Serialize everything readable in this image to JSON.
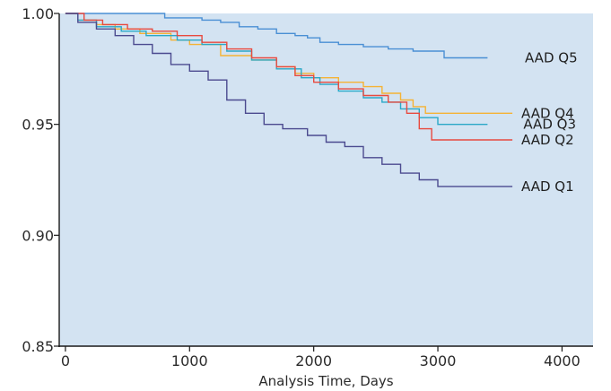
{
  "chart_data": {
    "type": "line",
    "title": "",
    "xlabel": "Analysis Time, Days",
    "ylabel": "",
    "xlim": [
      -50,
      4250
    ],
    "ylim": [
      0.85,
      1.0
    ],
    "xticks": [
      0,
      1000,
      2000,
      3000,
      4000
    ],
    "xtick_labels": [
      "0",
      "1000",
      "2000",
      "3000",
      "4000"
    ],
    "yticks": [
      0.85,
      0.9,
      0.95,
      1.0
    ],
    "ytick_labels": [
      "0.85",
      "0.90",
      "0.95",
      "1.00"
    ],
    "grid": false,
    "background": "#d3e3f2",
    "step": true,
    "legend": "direct labels at right end of each line",
    "series": [
      {
        "name": "AAD Q5",
        "color": "#4a8fd4",
        "x": [
          0,
          550,
          800,
          1100,
          1250,
          1400,
          1550,
          1700,
          1850,
          1950,
          2050,
          2200,
          2400,
          2600,
          2800,
          3050,
          3400
        ],
        "y": [
          1.0,
          1.0,
          0.998,
          0.997,
          0.996,
          0.994,
          0.993,
          0.991,
          0.99,
          0.989,
          0.987,
          0.986,
          0.985,
          0.984,
          0.983,
          0.98,
          0.98
        ]
      },
      {
        "name": "AAD Q4",
        "color": "#f5b335",
        "x": [
          0,
          100,
          250,
          400,
          600,
          850,
          1000,
          1250,
          1500,
          1700,
          1850,
          2000,
          2200,
          2400,
          2550,
          2700,
          2800,
          2900,
          3600
        ],
        "y": [
          1.0,
          0.997,
          0.995,
          0.993,
          0.991,
          0.988,
          0.986,
          0.981,
          0.979,
          0.976,
          0.973,
          0.971,
          0.969,
          0.967,
          0.964,
          0.961,
          0.958,
          0.955,
          0.955
        ]
      },
      {
        "name": "AAD Q3",
        "color": "#2aa8c7",
        "x": [
          0,
          100,
          250,
          450,
          650,
          900,
          1100,
          1300,
          1500,
          1700,
          1900,
          2050,
          2200,
          2400,
          2550,
          2700,
          2850,
          3000,
          3400
        ],
        "y": [
          1.0,
          0.997,
          0.994,
          0.992,
          0.99,
          0.988,
          0.986,
          0.983,
          0.979,
          0.975,
          0.971,
          0.968,
          0.965,
          0.962,
          0.96,
          0.957,
          0.953,
          0.95,
          0.95
        ]
      },
      {
        "name": "AAD Q2",
        "color": "#e84a3f",
        "x": [
          0,
          150,
          300,
          500,
          700,
          900,
          1100,
          1300,
          1500,
          1700,
          1850,
          2000,
          2200,
          2400,
          2600,
          2750,
          2850,
          2950,
          3600
        ],
        "y": [
          1.0,
          0.997,
          0.995,
          0.993,
          0.992,
          0.99,
          0.987,
          0.984,
          0.98,
          0.976,
          0.972,
          0.969,
          0.966,
          0.963,
          0.96,
          0.955,
          0.948,
          0.943,
          0.943
        ]
      },
      {
        "name": "AAD Q1",
        "color": "#4b4a8f",
        "x": [
          0,
          100,
          250,
          400,
          550,
          700,
          850,
          1000,
          1150,
          1300,
          1450,
          1600,
          1750,
          1950,
          2100,
          2250,
          2400,
          2550,
          2700,
          2850,
          3000,
          3600
        ],
        "y": [
          1.0,
          0.996,
          0.993,
          0.99,
          0.986,
          0.982,
          0.977,
          0.974,
          0.97,
          0.961,
          0.955,
          0.95,
          0.948,
          0.945,
          0.942,
          0.94,
          0.935,
          0.932,
          0.928,
          0.925,
          0.922,
          0.922
        ]
      }
    ]
  }
}
